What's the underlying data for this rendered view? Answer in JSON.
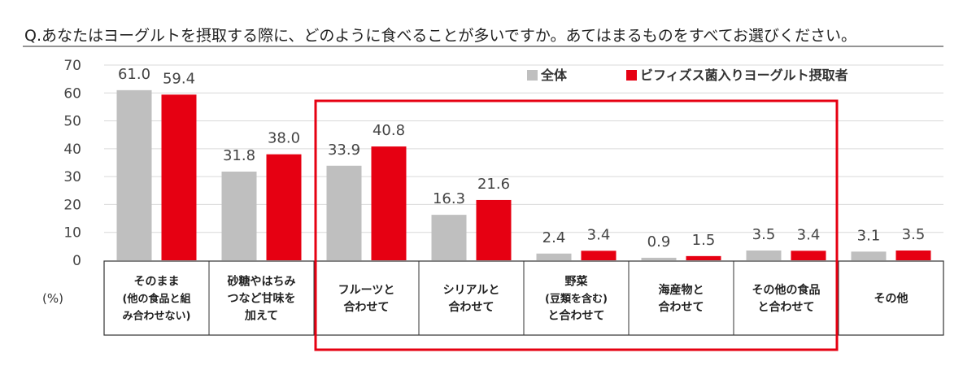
{
  "chart_data": {
    "type": "bar",
    "title": "Q.あなたはヨーグルトを摂取する際に、どのように食べることが多いですか。あてはまるものをすべてお選びください。",
    "unit_label": "(%)",
    "ylim": [
      0,
      70
    ],
    "yticks": [
      "0",
      "10",
      "20",
      "30",
      "40",
      "50",
      "60",
      "70"
    ],
    "grid": true,
    "legend_position": "top-right",
    "categories": [
      [
        "そのまま",
        "(他の食品と組",
        "み合わせない)"
      ],
      [
        "砂糖やはちみ",
        "つなど甘味を",
        "加えて"
      ],
      [
        "フルーツと",
        "合わせて"
      ],
      [
        "シリアルと",
        "合わせて"
      ],
      [
        "野菜",
        "(豆類を含む)",
        "と合わせて"
      ],
      [
        "海産物と",
        "合わせて"
      ],
      [
        "その他の食品",
        "と合わせて"
      ],
      [
        "その他"
      ]
    ],
    "series": [
      {
        "name": "全体",
        "color": "#bfbfbf",
        "values": [
          61.0,
          31.8,
          33.9,
          16.3,
          2.4,
          0.9,
          3.5,
          3.1
        ],
        "labels": [
          "61.0",
          "31.8",
          "33.9",
          "16.3",
          "2.4",
          "0.9",
          "3.5",
          "3.1"
        ]
      },
      {
        "name": "ビフィズス菌入りヨーグルト摂取者",
        "color": "#e60012",
        "values": [
          59.4,
          38.0,
          40.8,
          21.6,
          3.4,
          1.5,
          3.4,
          3.5
        ],
        "labels": [
          "59.4",
          "38.0",
          "40.8",
          "21.6",
          "3.4",
          "1.5",
          "3.4",
          "3.5"
        ]
      }
    ],
    "highlight": {
      "from_category": 2,
      "to_category": 6,
      "color": "#e60012"
    }
  }
}
